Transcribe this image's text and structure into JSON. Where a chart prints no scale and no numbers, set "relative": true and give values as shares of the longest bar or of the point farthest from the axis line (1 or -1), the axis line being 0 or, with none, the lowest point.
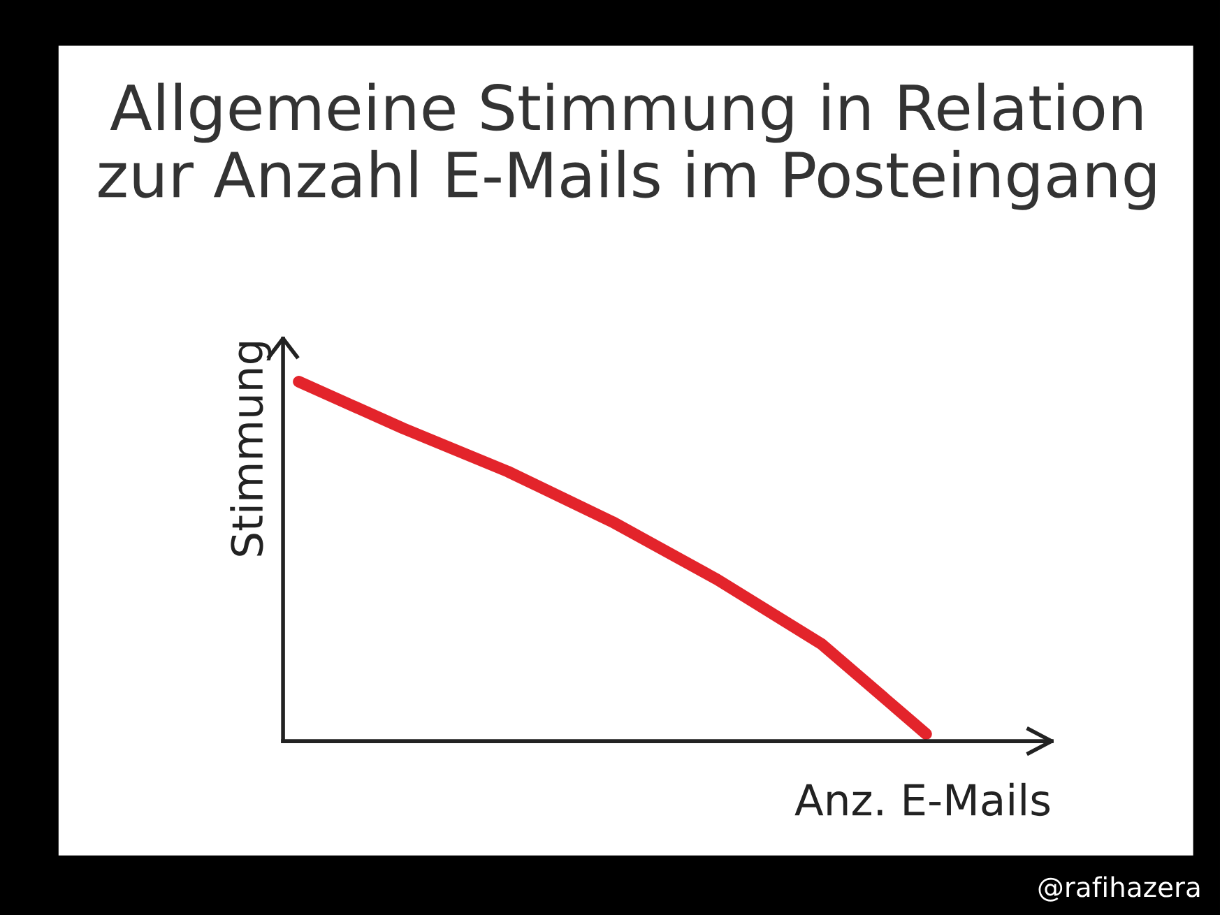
{
  "chart_data": {
    "type": "line",
    "title": "Allgemeine Stimmung in Relation\nzur Anzahl E-Mails im Posteingang",
    "xlabel": "Anz. E-Mails",
    "ylabel": "Stimmung",
    "relative": true,
    "categories": [
      null,
      null,
      null,
      null,
      null,
      null,
      null
    ],
    "series": [
      {
        "color": "#e3242b",
        "values": [
          1.0,
          0.87,
          0.75,
          0.61,
          0.45,
          0.27,
          0.02
        ]
      }
    ],
    "annotations": [
      "@rafihazera"
    ],
    "grid": false,
    "legend": false,
    "marker": "none",
    "line_style": "solid"
  }
}
